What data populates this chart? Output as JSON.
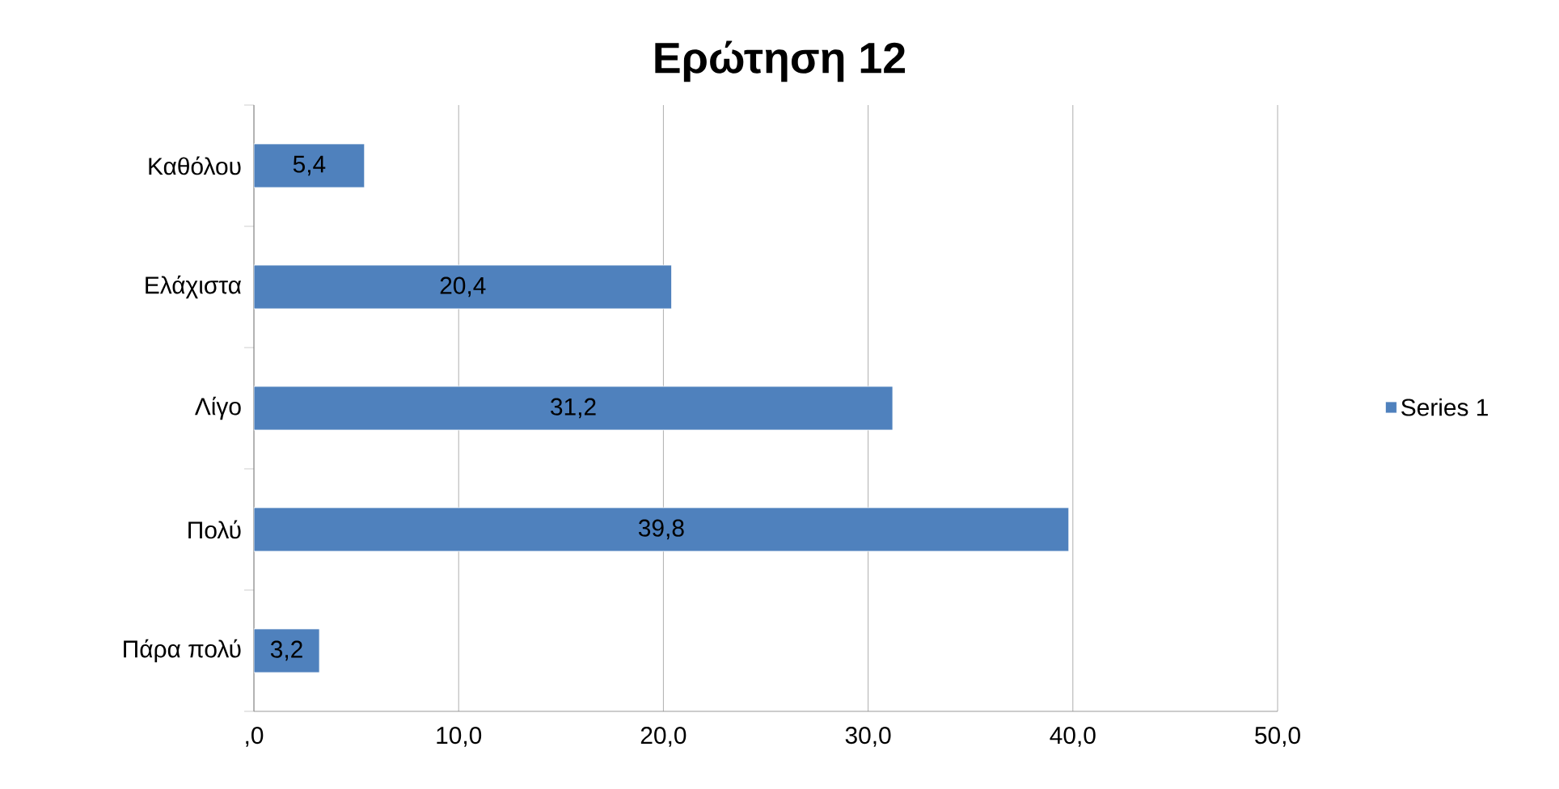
{
  "chart_data": {
    "type": "bar",
    "orientation": "horizontal",
    "title": "Ερώτηση 12",
    "categories": [
      "Καθόλου",
      "Ελάχιστα",
      "Λίγο",
      "Πολύ",
      "Πάρα πολύ"
    ],
    "series": [
      {
        "name": "Series 1",
        "color": "#4f81bd",
        "values": [
          5.4,
          20.4,
          31.2,
          39.8,
          3.2
        ],
        "value_labels": [
          "5,4",
          "20,4",
          "31,2",
          "39,8",
          "3,2"
        ]
      }
    ],
    "xlim": [
      0,
      50
    ],
    "xticks": [
      {
        "value": 0,
        "label": ",0"
      },
      {
        "value": 10,
        "label": "10,0"
      },
      {
        "value": 20,
        "label": "20,0"
      },
      {
        "value": 30,
        "label": "30,0"
      },
      {
        "value": 40,
        "label": "40,0"
      },
      {
        "value": 50,
        "label": "50,0"
      }
    ],
    "grid": "x",
    "legend": "right"
  }
}
